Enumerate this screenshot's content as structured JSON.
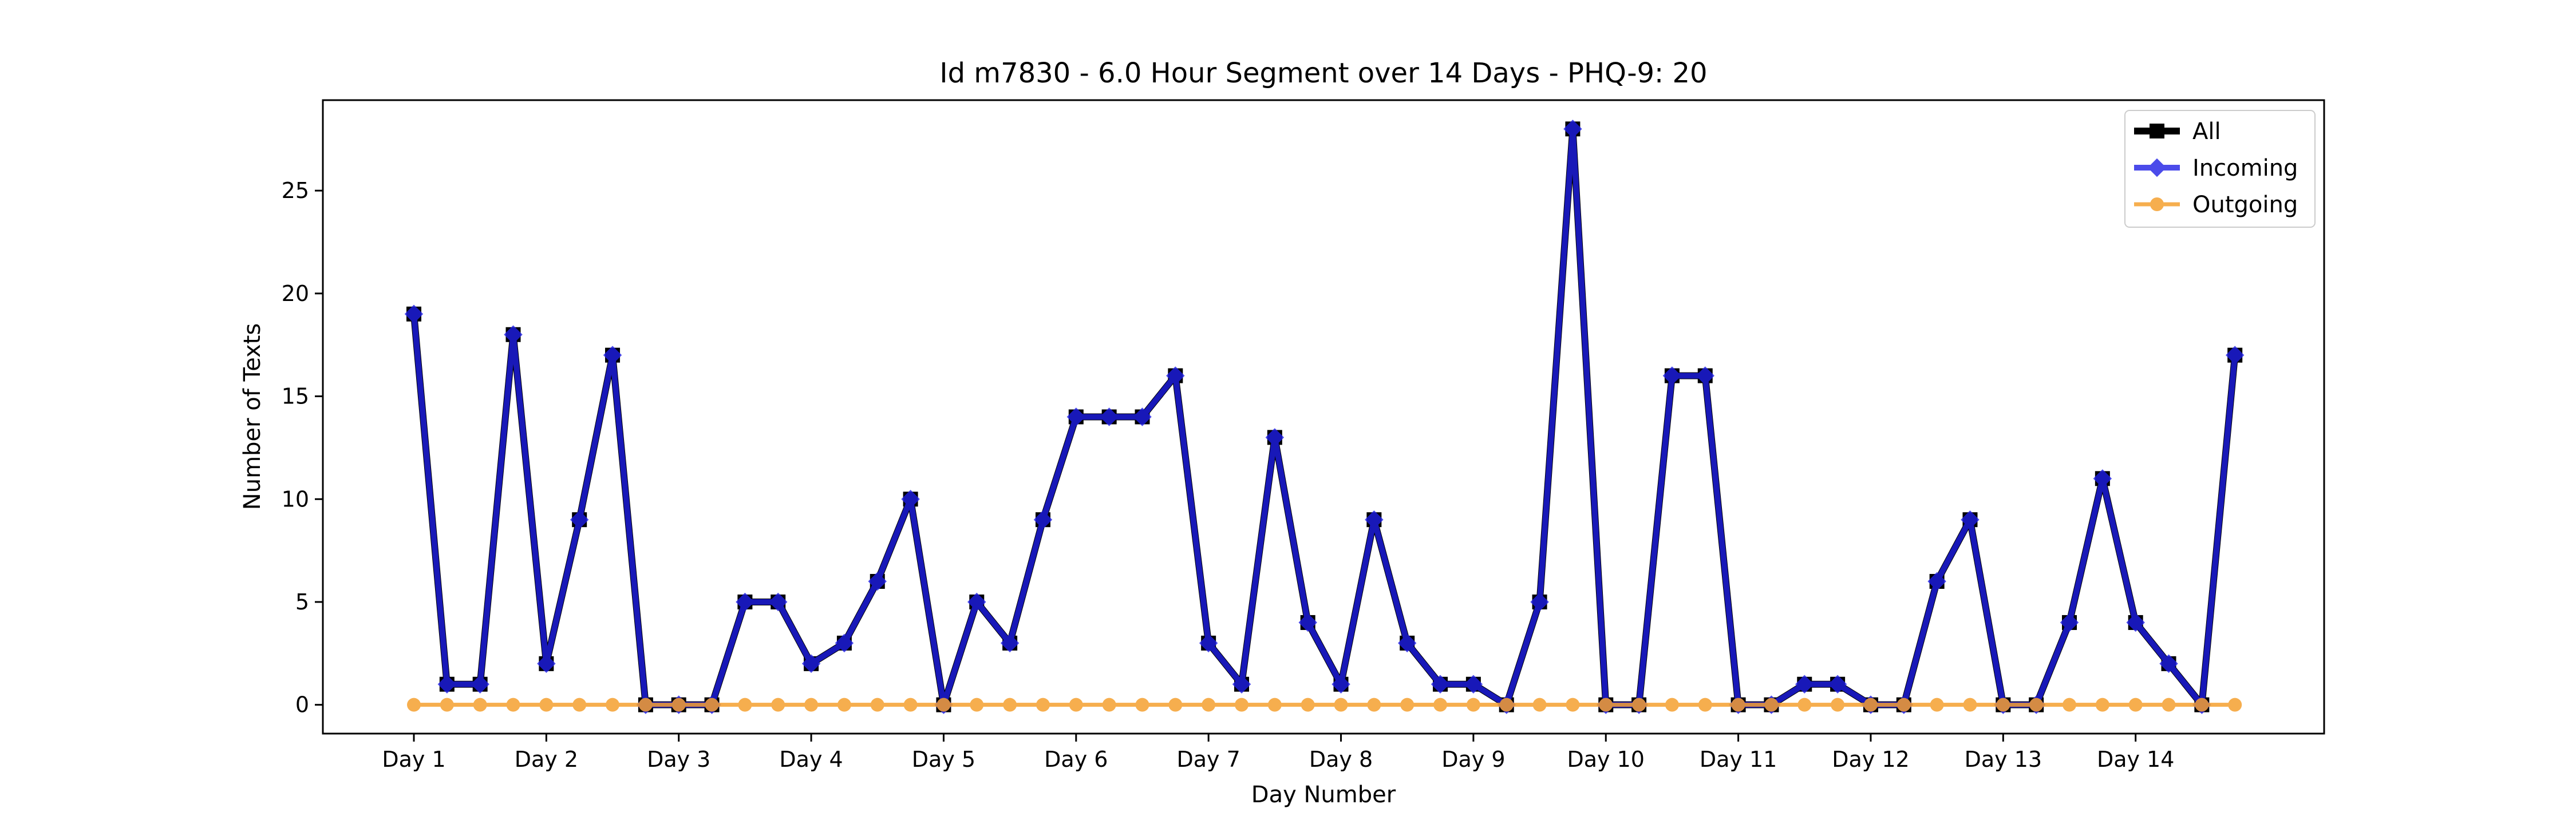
{
  "chart_data": {
    "type": "line",
    "title": "Id m7830 - 6.0 Hour Segment over 14 Days - PHQ-9: 20",
    "xlabel": "Day Number",
    "ylabel": "Number of Texts",
    "x_ticks": [
      "Day 1",
      "Day 2",
      "Day 3",
      "Day 4",
      "Day 5",
      "Day 6",
      "Day 7",
      "Day 8",
      "Day 9",
      "Day 10",
      "Day 11",
      "Day 12",
      "Day 13",
      "Day 14"
    ],
    "y_ticks": [
      0,
      5,
      10,
      15,
      20,
      25
    ],
    "ylim": [
      -1.4,
      29.4
    ],
    "legend_position": "top-right",
    "series": [
      {
        "name": "All",
        "color": "#000000",
        "marker": "square",
        "values": [
          19,
          1,
          1,
          18,
          2,
          9,
          17,
          0,
          0,
          0,
          5,
          5,
          2,
          3,
          6,
          10,
          0,
          5,
          3,
          9,
          14,
          14,
          14,
          16,
          3,
          1,
          13,
          4,
          1,
          9,
          3,
          1,
          1,
          0,
          5,
          28,
          0,
          0,
          16,
          16,
          0,
          0,
          1,
          1,
          0,
          0,
          6,
          9,
          0,
          0,
          4,
          11,
          4,
          2,
          0,
          17
        ]
      },
      {
        "name": "Incoming",
        "color": "#1f1fe6",
        "marker": "diamond",
        "values": [
          19,
          1,
          1,
          18,
          2,
          9,
          17,
          0,
          0,
          0,
          5,
          5,
          2,
          3,
          6,
          10,
          0,
          5,
          3,
          9,
          14,
          14,
          14,
          16,
          3,
          1,
          13,
          4,
          1,
          9,
          3,
          1,
          1,
          0,
          5,
          28,
          0,
          0,
          16,
          16,
          0,
          0,
          1,
          1,
          0,
          0,
          6,
          9,
          0,
          0,
          4,
          11,
          4,
          2,
          0,
          17
        ]
      },
      {
        "name": "Outgoing",
        "color": "#f5a030",
        "marker": "circle",
        "values": [
          0,
          0,
          0,
          0,
          0,
          0,
          0,
          0,
          0,
          0,
          0,
          0,
          0,
          0,
          0,
          0,
          0,
          0,
          0,
          0,
          0,
          0,
          0,
          0,
          0,
          0,
          0,
          0,
          0,
          0,
          0,
          0,
          0,
          0,
          0,
          0,
          0,
          0,
          0,
          0,
          0,
          0,
          0,
          0,
          0,
          0,
          0,
          0,
          0,
          0,
          0,
          0,
          0,
          0,
          0,
          0
        ]
      }
    ]
  }
}
